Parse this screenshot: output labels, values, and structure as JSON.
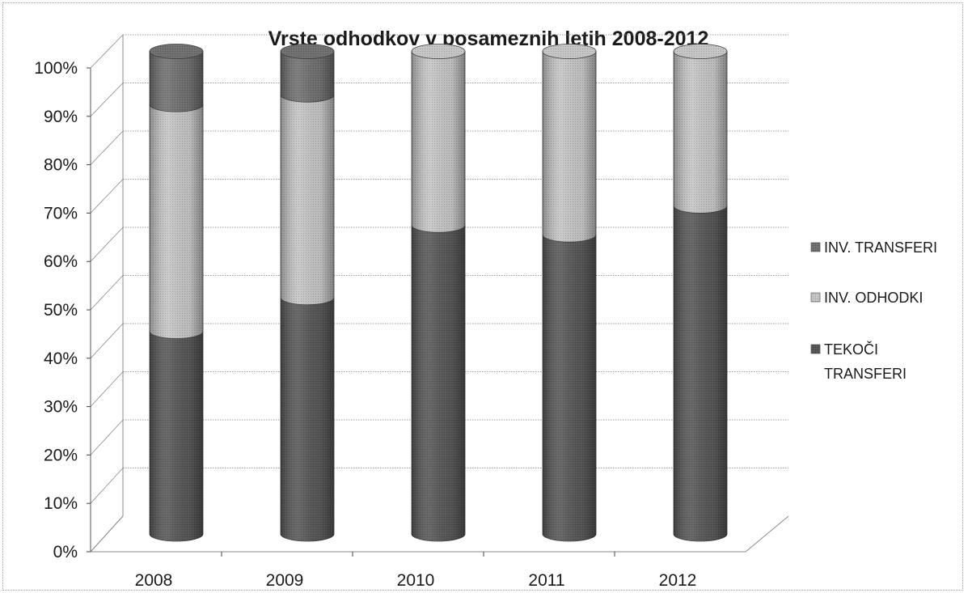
{
  "chart_data": {
    "type": "bar",
    "stacked": true,
    "percent": true,
    "style": "3d-cylinder",
    "title": "Vrste odhodkov v posameznih letih 2008-2012",
    "categories": [
      "2008",
      "2009",
      "2010",
      "2011",
      "2012"
    ],
    "series": [
      {
        "name": "TEKOČI TRANSFERI",
        "values": [
          42,
          49,
          64,
          62,
          68
        ],
        "color": "#555555"
      },
      {
        "name": "INV. ODHODKI",
        "values": [
          47,
          42,
          36,
          38,
          32
        ],
        "color": "#c4c4c4"
      },
      {
        "name": "INV. TRANSFERI",
        "values": [
          11,
          9,
          0,
          0,
          0
        ],
        "color": "#6e6e6e"
      }
    ],
    "ylim": [
      0,
      100
    ],
    "yticks": [
      "0%",
      "10%",
      "20%",
      "30%",
      "40%",
      "50%",
      "60%",
      "70%",
      "80%",
      "90%",
      "100%"
    ],
    "legend": {
      "position": "right",
      "entries": [
        {
          "label": "INV. TRANSFERI",
          "lines": [
            "INV. TRANSFERI"
          ]
        },
        {
          "label": "INV. ODHODKI",
          "lines": [
            "INV. ODHODKI"
          ]
        },
        {
          "label": "TEKOČI TRANSFERI",
          "lines": [
            "TEKOČI",
            "TRANSFERI"
          ]
        }
      ]
    },
    "grid": true,
    "xlabel": "",
    "ylabel": ""
  }
}
